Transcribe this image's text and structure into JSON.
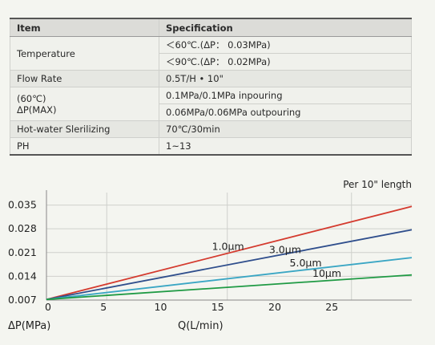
{
  "table": {
    "headers": [
      "Item",
      "Specification"
    ],
    "rows": {
      "temperature": {
        "label": "Temperature",
        "values": [
          "＜60℃.(ΔP： 0.03MPa)",
          "＜90℃.(ΔP： 0.02MPa)"
        ]
      },
      "flow_rate": {
        "label": "Flow Rate",
        "value": "0.5T/H • 10\""
      },
      "pressure": {
        "label_line1": "(60℃)",
        "label_line2": "ΔP(MAX)",
        "values": [
          "0.1MPa/0.1MPa inpouring",
          "0.06MPa/0.06MPa outpouring"
        ]
      },
      "hot_water": {
        "label": "Hot-water Slerilizing",
        "value": "70℃/30min"
      },
      "ph": {
        "label": "PH",
        "value": "1~13"
      }
    }
  },
  "chart_data": {
    "type": "line",
    "annotation": "Per 10\" length",
    "xlabel": "Q(L/min)",
    "ylabel": "ΔP(MPa)",
    "x_ticks": [
      0,
      5,
      10,
      15,
      20,
      25
    ],
    "y_ticks": [
      0.007,
      0.014,
      0.021,
      0.028,
      0.035
    ],
    "xlim": [
      0,
      32
    ],
    "ylim": [
      0.007,
      0.0375
    ],
    "grid": true,
    "series": [
      {
        "name": "1.0μm",
        "color": "#d43a2e",
        "x": [
          0,
          32
        ],
        "y": [
          0.0072,
          0.0346
        ]
      },
      {
        "name": "3.0μm",
        "color": "#2f4e8c",
        "x": [
          0,
          32
        ],
        "y": [
          0.0072,
          0.0277
        ]
      },
      {
        "name": "5.0μm",
        "color": "#3aa6c4",
        "x": [
          0,
          32
        ],
        "y": [
          0.0072,
          0.0195
        ]
      },
      {
        "name": "10μm",
        "color": "#1f9a44",
        "x": [
          0,
          32
        ],
        "y": [
          0.0072,
          0.0144
        ]
      }
    ],
    "series_label_positions_data": [
      {
        "x": 14.5,
        "y": 0.0218
      },
      {
        "x": 19.5,
        "y": 0.0208
      },
      {
        "x": 21.3,
        "y": 0.0169
      },
      {
        "x": 23.3,
        "y": 0.0138
      }
    ]
  }
}
